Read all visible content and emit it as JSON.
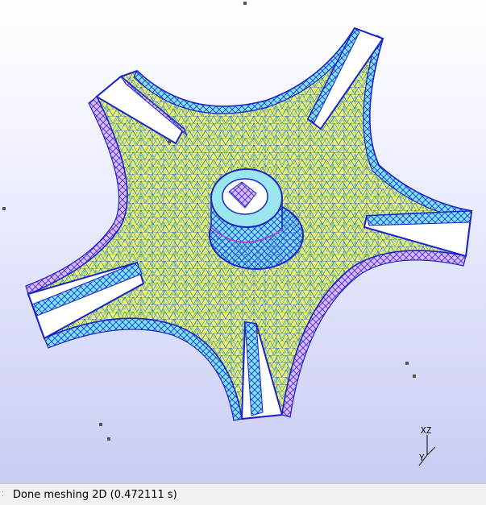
{
  "viewport": {
    "background_top": "#ffffff",
    "background_bottom": "#c9ccf2",
    "mesh_fill": "#e8f270",
    "mesh_line_blue": "#1a2fd0",
    "mesh_line_cyan": "#33c7d6",
    "mesh_line_magenta": "#c23be0",
    "axes": {
      "top_label": "XZ",
      "bottom_label": "Y"
    }
  },
  "status": {
    "grip_icon": "size-grip-icon",
    "message": "Done meshing 2D (0.472111 s)"
  }
}
